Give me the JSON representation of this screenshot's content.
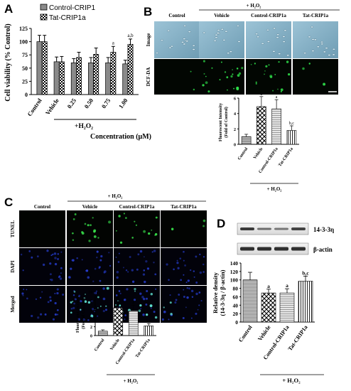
{
  "panels": {
    "A": {
      "letter": "A",
      "legend": [
        "Control-CRIP1",
        "Tat-CRIP1a"
      ],
      "ylabel": "Cell viability (% Control)",
      "xlabel": "Concentration (μM)",
      "group_label": "+H₂O₂",
      "yticks": [
        "0",
        "25",
        "50",
        "75",
        "100",
        "125"
      ],
      "annotations": [
        "a",
        "a,b"
      ]
    },
    "B": {
      "letter": "B",
      "h2o2_label": "+ H₂O₂",
      "columns": [
        "Control",
        "Vehicle",
        "Control-CRIP1a",
        "Tat-CRIP1a"
      ],
      "rows": [
        "Image",
        "DCF-DA"
      ],
      "ylabel": "Fluorescent Intensity",
      "ylabel2": "(Fold of Control)",
      "yticks": [
        "0",
        "2",
        "4",
        "6"
      ],
      "x_labels": [
        "Control",
        "Vehicle",
        "Control-CRIP1a",
        "Tat-CRIP1a"
      ],
      "letters": [
        "a",
        "a",
        "b,c"
      ],
      "bottom_label": "+ H₂O₂"
    },
    "C": {
      "letter": "C",
      "h2o2_label": "+ H₂O₂",
      "columns": [
        "Control",
        "Vehicle",
        "Control-CRIP1a",
        "Tat-CRIP1a"
      ],
      "rows": [
        "TUNEL",
        "DAPI",
        "Merged"
      ],
      "ylabel": "Fluorescent Intensity",
      "ylabel2": "(Fold of Control)",
      "yticks": [
        "0",
        "2",
        "4",
        "6",
        "8",
        "10"
      ],
      "x_labels": [
        "Control",
        "Vehicle",
        "Control-CRIP1a",
        "Tat-CRIP1a"
      ],
      "letters": [
        "a",
        "a",
        "b,c"
      ],
      "bottom_label": "+ H₂O₂"
    },
    "D": {
      "letter": "D",
      "blot_labels": [
        "14-3-3η",
        "β-actin"
      ],
      "ylabel": "Relative density",
      "ylabel2": "(14-3-3η / β-actin)",
      "yticks": [
        "0",
        "20",
        "40",
        "60",
        "80",
        "100",
        "120",
        "140"
      ],
      "x_labels": [
        "Control",
        "Vehicle",
        "Control-CRIP1a",
        "Tat-CRIP1a"
      ],
      "letters": [
        "a",
        "a",
        "b,c"
      ],
      "bottom_label": "+ H₂O₂"
    }
  },
  "chart_data": [
    {
      "type": "bar",
      "panel": "A",
      "categories": [
        "Control",
        "Vehicle",
        "0.25",
        "0.50",
        "0.75",
        "1.00"
      ],
      "series": [
        {
          "name": "Control-CRIP1",
          "values": [
            100,
            62,
            60,
            60,
            60,
            58
          ],
          "errors": [
            12,
            9,
            8,
            10,
            10,
            7
          ]
        },
        {
          "name": "Tat-CRIP1a",
          "values": [
            100,
            62,
            70,
            76,
            80,
            95
          ],
          "errors": [
            12,
            10,
            10,
            12,
            11,
            10
          ]
        }
      ],
      "ylabel": "Cell viability (% Control)",
      "xlabel": "Concentration (μM)",
      "ylim": [
        0,
        125
      ]
    },
    {
      "type": "bar",
      "panel": "B",
      "categories": [
        "Control",
        "Vehicle",
        "Control-CRIP1a",
        "Tat-CRIP1a"
      ],
      "values": [
        1.0,
        4.9,
        4.6,
        1.8
      ],
      "errors": [
        0.3,
        1.3,
        1.2,
        0.6
      ],
      "ylabel": "Fluorescent Intensity (Fold of Control)",
      "ylim": [
        0,
        6
      ]
    },
    {
      "type": "bar",
      "panel": "C",
      "categories": [
        "Control",
        "Vehicle",
        "Control-CRIP1a",
        "Tat-CRIP1a"
      ],
      "values": [
        1.0,
        6.3,
        5.6,
        2.2
      ],
      "errors": [
        0.3,
        1.8,
        1.3,
        0.5
      ],
      "ylabel": "Fluorescent Intensity (Fold of Control)",
      "ylim": [
        0,
        10
      ]
    },
    {
      "type": "bar",
      "panel": "D",
      "categories": [
        "Control",
        "Vehicle",
        "Control-CRIP1a",
        "Tat-CRIP1a"
      ],
      "values": [
        100,
        69,
        69,
        97
      ],
      "errors": [
        18,
        9,
        10,
        12
      ],
      "ylabel": "Relative density (14-3-3η / β-actin)",
      "ylim": [
        0,
        140
      ]
    }
  ]
}
